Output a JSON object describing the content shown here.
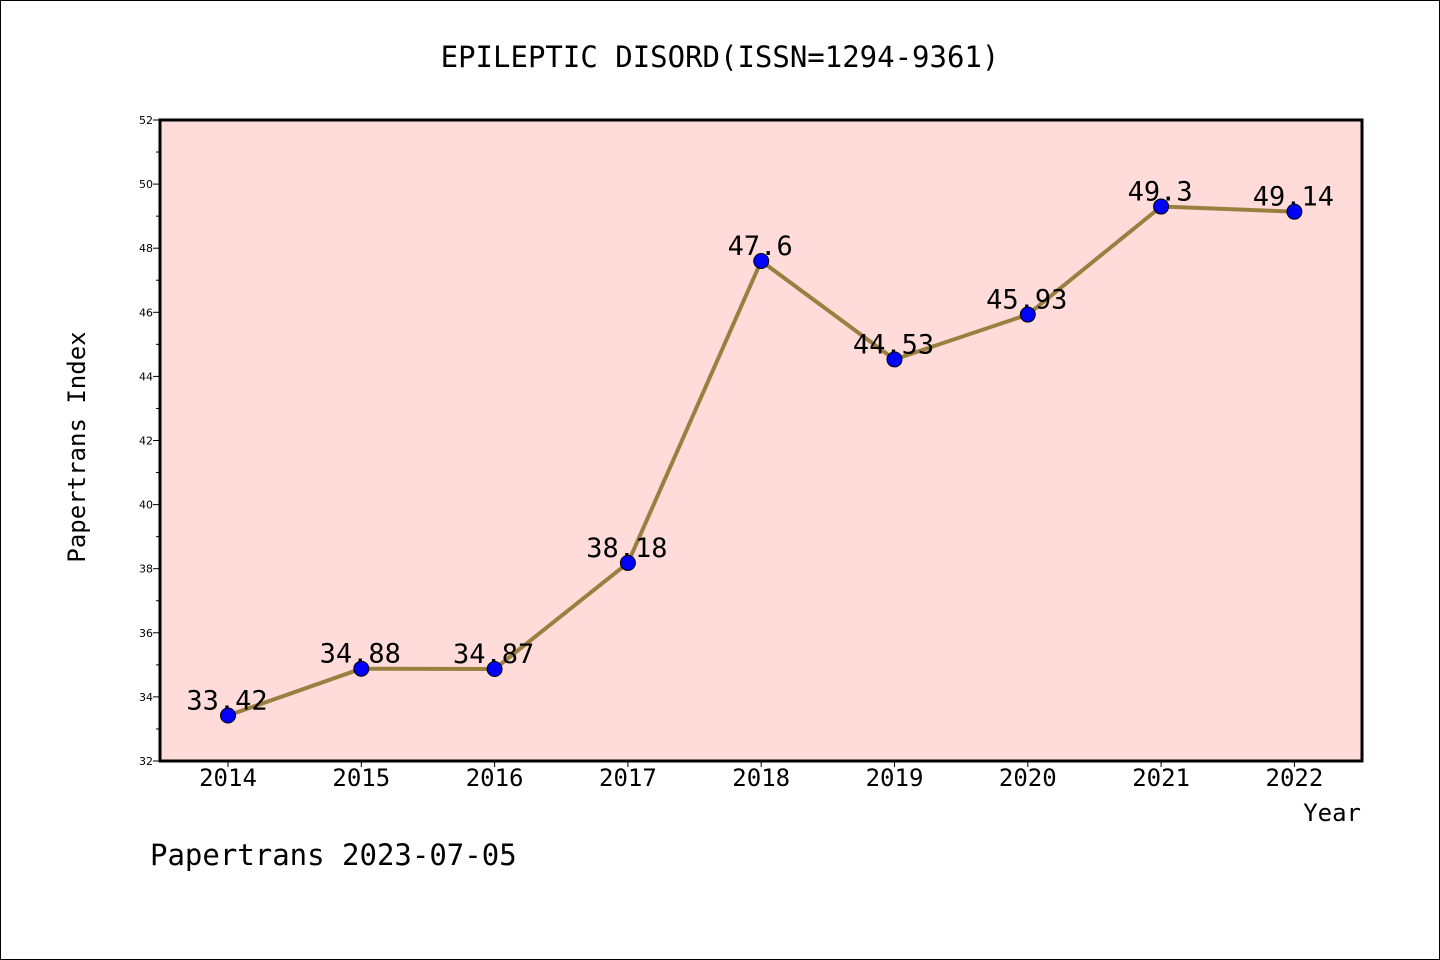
{
  "chart_data": {
    "type": "line",
    "title": "EPILEPTIC DISORD(ISSN=1294-9361)",
    "xlabel": "Year",
    "ylabel": "Papertrans Index",
    "categories": [
      "2014",
      "2015",
      "2016",
      "2017",
      "2018",
      "2019",
      "2020",
      "2021",
      "2022"
    ],
    "series": [
      {
        "values": [
          33.42,
          34.88,
          34.87,
          38.18,
          47.6,
          44.53,
          45.93,
          49.3,
          49.14
        ],
        "labels": [
          "33.42",
          "34.88",
          "34.87",
          "38.18",
          "47.6",
          "44.53",
          "45.93",
          "49.3",
          "49.14"
        ]
      }
    ],
    "ylim": [
      32,
      52
    ],
    "yticks": [
      32,
      34,
      36,
      38,
      40,
      42,
      44,
      46,
      48,
      50,
      52
    ],
    "ytick_labels": [
      "32",
      "34",
      "36",
      "38",
      "40",
      "42",
      "44",
      "46",
      "48",
      "50",
      "52"
    ],
    "grid": false,
    "colors": {
      "plot_bg": "#ffdcda",
      "line": "#9a8040",
      "marker": "#0000ff"
    }
  },
  "footer": {
    "watermark": "Papertrans 2023-07-05"
  }
}
